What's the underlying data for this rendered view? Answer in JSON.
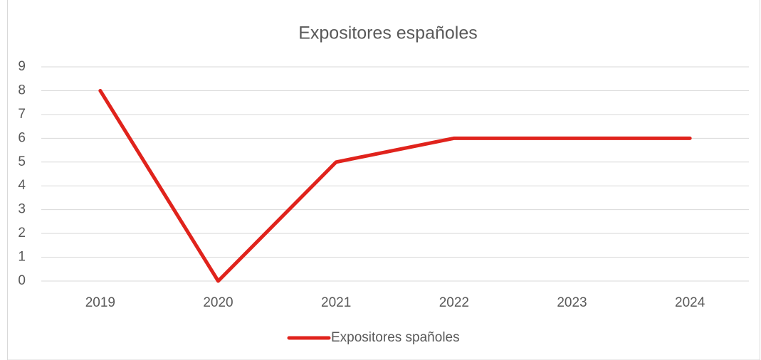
{
  "chart_data": {
    "type": "line",
    "title": "Expositores españoles",
    "categories": [
      "2019",
      "2020",
      "2021",
      "2022",
      "2023",
      "2024"
    ],
    "series": [
      {
        "name": "Expositores spañoles",
        "color": "#e0231c",
        "values": [
          8,
          0,
          5,
          6,
          6,
          6
        ]
      }
    ],
    "ylim": [
      0,
      9
    ],
    "yticks": [
      0,
      1,
      2,
      3,
      4,
      5,
      6,
      7,
      8,
      9
    ],
    "grid": true,
    "legend": "bottom"
  }
}
